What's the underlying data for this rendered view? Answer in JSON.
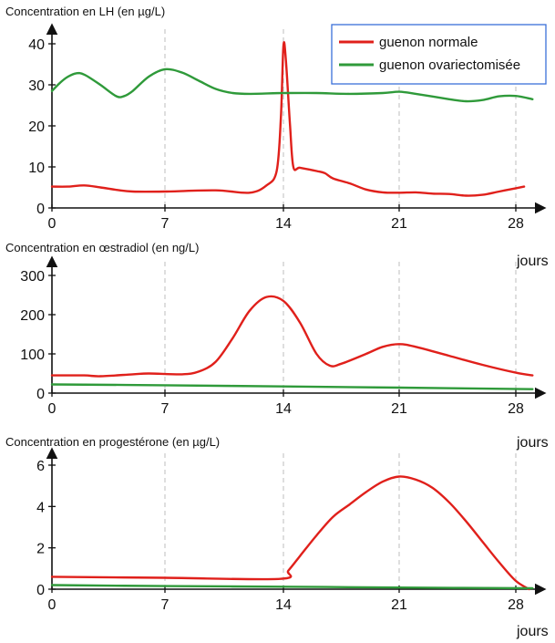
{
  "chart_data": [
    {
      "type": "line",
      "title": "Concentration en LH (en µg/L)",
      "xlabel": "jours",
      "ylabel": "",
      "xlim": [
        0,
        29
      ],
      "ylim": [
        0,
        40
      ],
      "x_ticks": [
        0,
        7,
        14,
        21,
        28
      ],
      "y_ticks": [
        0,
        10,
        20,
        30,
        40
      ],
      "grid": "dashed vertical lines at x ticks",
      "legend": "top-right",
      "series": [
        {
          "name": "guenon normale",
          "color": "#e0201b",
          "points": [
            [
              0,
              5.2
            ],
            [
              1,
              5.2
            ],
            [
              2,
              5.5
            ],
            [
              3,
              5
            ],
            [
              4,
              4.4
            ],
            [
              5,
              4
            ],
            [
              7,
              4
            ],
            [
              10,
              4.3
            ],
            [
              12,
              3.7
            ],
            [
              13,
              5.5
            ],
            [
              13.6,
              9
            ],
            [
              13.85,
              22
            ],
            [
              14,
              39.5
            ],
            [
              14.15,
              36
            ],
            [
              14.4,
              20
            ],
            [
              14.6,
              10
            ],
            [
              15,
              9.8
            ],
            [
              16,
              9
            ],
            [
              16.5,
              8.5
            ],
            [
              17,
              7.2
            ],
            [
              18,
              6
            ],
            [
              19,
              4.5
            ],
            [
              20,
              3.8
            ],
            [
              21,
              3.7
            ],
            [
              22,
              3.8
            ],
            [
              23,
              3.5
            ],
            [
              24,
              3.4
            ],
            [
              25,
              3
            ],
            [
              26,
              3.2
            ],
            [
              27,
              4
            ],
            [
              28,
              4.8
            ],
            [
              28.5,
              5.2
            ]
          ]
        },
        {
          "name": "guenon ovariectomisée",
          "color": "#2f9a3a",
          "points": [
            [
              0,
              28.5
            ],
            [
              0.5,
              30.5
            ],
            [
              1,
              32
            ],
            [
              1.5,
              32.8
            ],
            [
              2,
              32.5
            ],
            [
              3,
              30
            ],
            [
              4,
              27.2
            ],
            [
              4.5,
              27.3
            ],
            [
              5,
              28.5
            ],
            [
              6,
              32
            ],
            [
              7,
              33.8
            ],
            [
              8,
              33
            ],
            [
              9,
              31
            ],
            [
              10,
              29
            ],
            [
              11,
              28
            ],
            [
              12,
              27.8
            ],
            [
              14,
              28
            ],
            [
              16,
              28
            ],
            [
              18,
              27.8
            ],
            [
              20,
              28
            ],
            [
              21,
              28.3
            ],
            [
              22,
              27.8
            ],
            [
              24,
              26.5
            ],
            [
              25,
              26
            ],
            [
              26,
              26.3
            ],
            [
              27,
              27.2
            ],
            [
              28,
              27.3
            ],
            [
              29,
              26.5
            ]
          ]
        }
      ]
    },
    {
      "type": "line",
      "title": "Concentration en œstradiol (en ng/L)",
      "xlabel": "jours",
      "ylabel": "",
      "xlim": [
        0,
        29
      ],
      "ylim": [
        0,
        300
      ],
      "x_ticks": [
        0,
        7,
        14,
        21,
        28
      ],
      "y_ticks": [
        0,
        100,
        200,
        300
      ],
      "grid": "dashed vertical lines at x ticks",
      "series": [
        {
          "name": "guenon normale",
          "color": "#e0201b",
          "points": [
            [
              0,
              45
            ],
            [
              2,
              45
            ],
            [
              3,
              43
            ],
            [
              5,
              48
            ],
            [
              6,
              50
            ],
            [
              8,
              48
            ],
            [
              9,
              55
            ],
            [
              10,
              80
            ],
            [
              11,
              140
            ],
            [
              12,
              210
            ],
            [
              13,
              245
            ],
            [
              14,
              235
            ],
            [
              15,
              180
            ],
            [
              16,
              100
            ],
            [
              16.8,
              70
            ],
            [
              17.5,
              75
            ],
            [
              19,
              100
            ],
            [
              20,
              118
            ],
            [
              21,
              125
            ],
            [
              22,
              118
            ],
            [
              24,
              95
            ],
            [
              26,
              72
            ],
            [
              28,
              52
            ],
            [
              29,
              45
            ]
          ]
        },
        {
          "name": "guenon ovariectomisée",
          "color": "#2f9a3a",
          "points": [
            [
              0,
              22
            ],
            [
              7,
              20
            ],
            [
              14,
              17
            ],
            [
              21,
              14
            ],
            [
              29,
              10
            ]
          ]
        }
      ]
    },
    {
      "type": "line",
      "title": "Concentration en progestérone (en µg/L)",
      "xlabel": "jours",
      "ylabel": "",
      "xlim": [
        0,
        29
      ],
      "ylim": [
        0,
        6
      ],
      "x_ticks": [
        0,
        7,
        14,
        21,
        28
      ],
      "y_ticks": [
        0,
        2,
        4,
        6
      ],
      "grid": "dashed vertical lines at x ticks",
      "series": [
        {
          "name": "guenon normale",
          "color": "#e0201b",
          "points": [
            [
              0,
              0.6
            ],
            [
              7,
              0.55
            ],
            [
              13.8,
              0.5
            ],
            [
              14.3,
              0.9
            ],
            [
              15,
              1.6
            ],
            [
              16,
              2.6
            ],
            [
              17,
              3.5
            ],
            [
              18,
              4.1
            ],
            [
              19,
              4.7
            ],
            [
              20,
              5.2
            ],
            [
              21,
              5.45
            ],
            [
              22,
              5.3
            ],
            [
              23,
              4.9
            ],
            [
              24,
              4.2
            ],
            [
              25,
              3.3
            ],
            [
              26,
              2.3
            ],
            [
              27,
              1.3
            ],
            [
              28,
              0.4
            ],
            [
              28.8,
              0
            ]
          ]
        },
        {
          "name": "guenon ovariectomisée",
          "color": "#2f9a3a",
          "points": [
            [
              0,
              0.2
            ],
            [
              7,
              0.15
            ],
            [
              14,
              0.12
            ],
            [
              21,
              0.08
            ],
            [
              29,
              0.05
            ]
          ]
        }
      ]
    }
  ]
}
